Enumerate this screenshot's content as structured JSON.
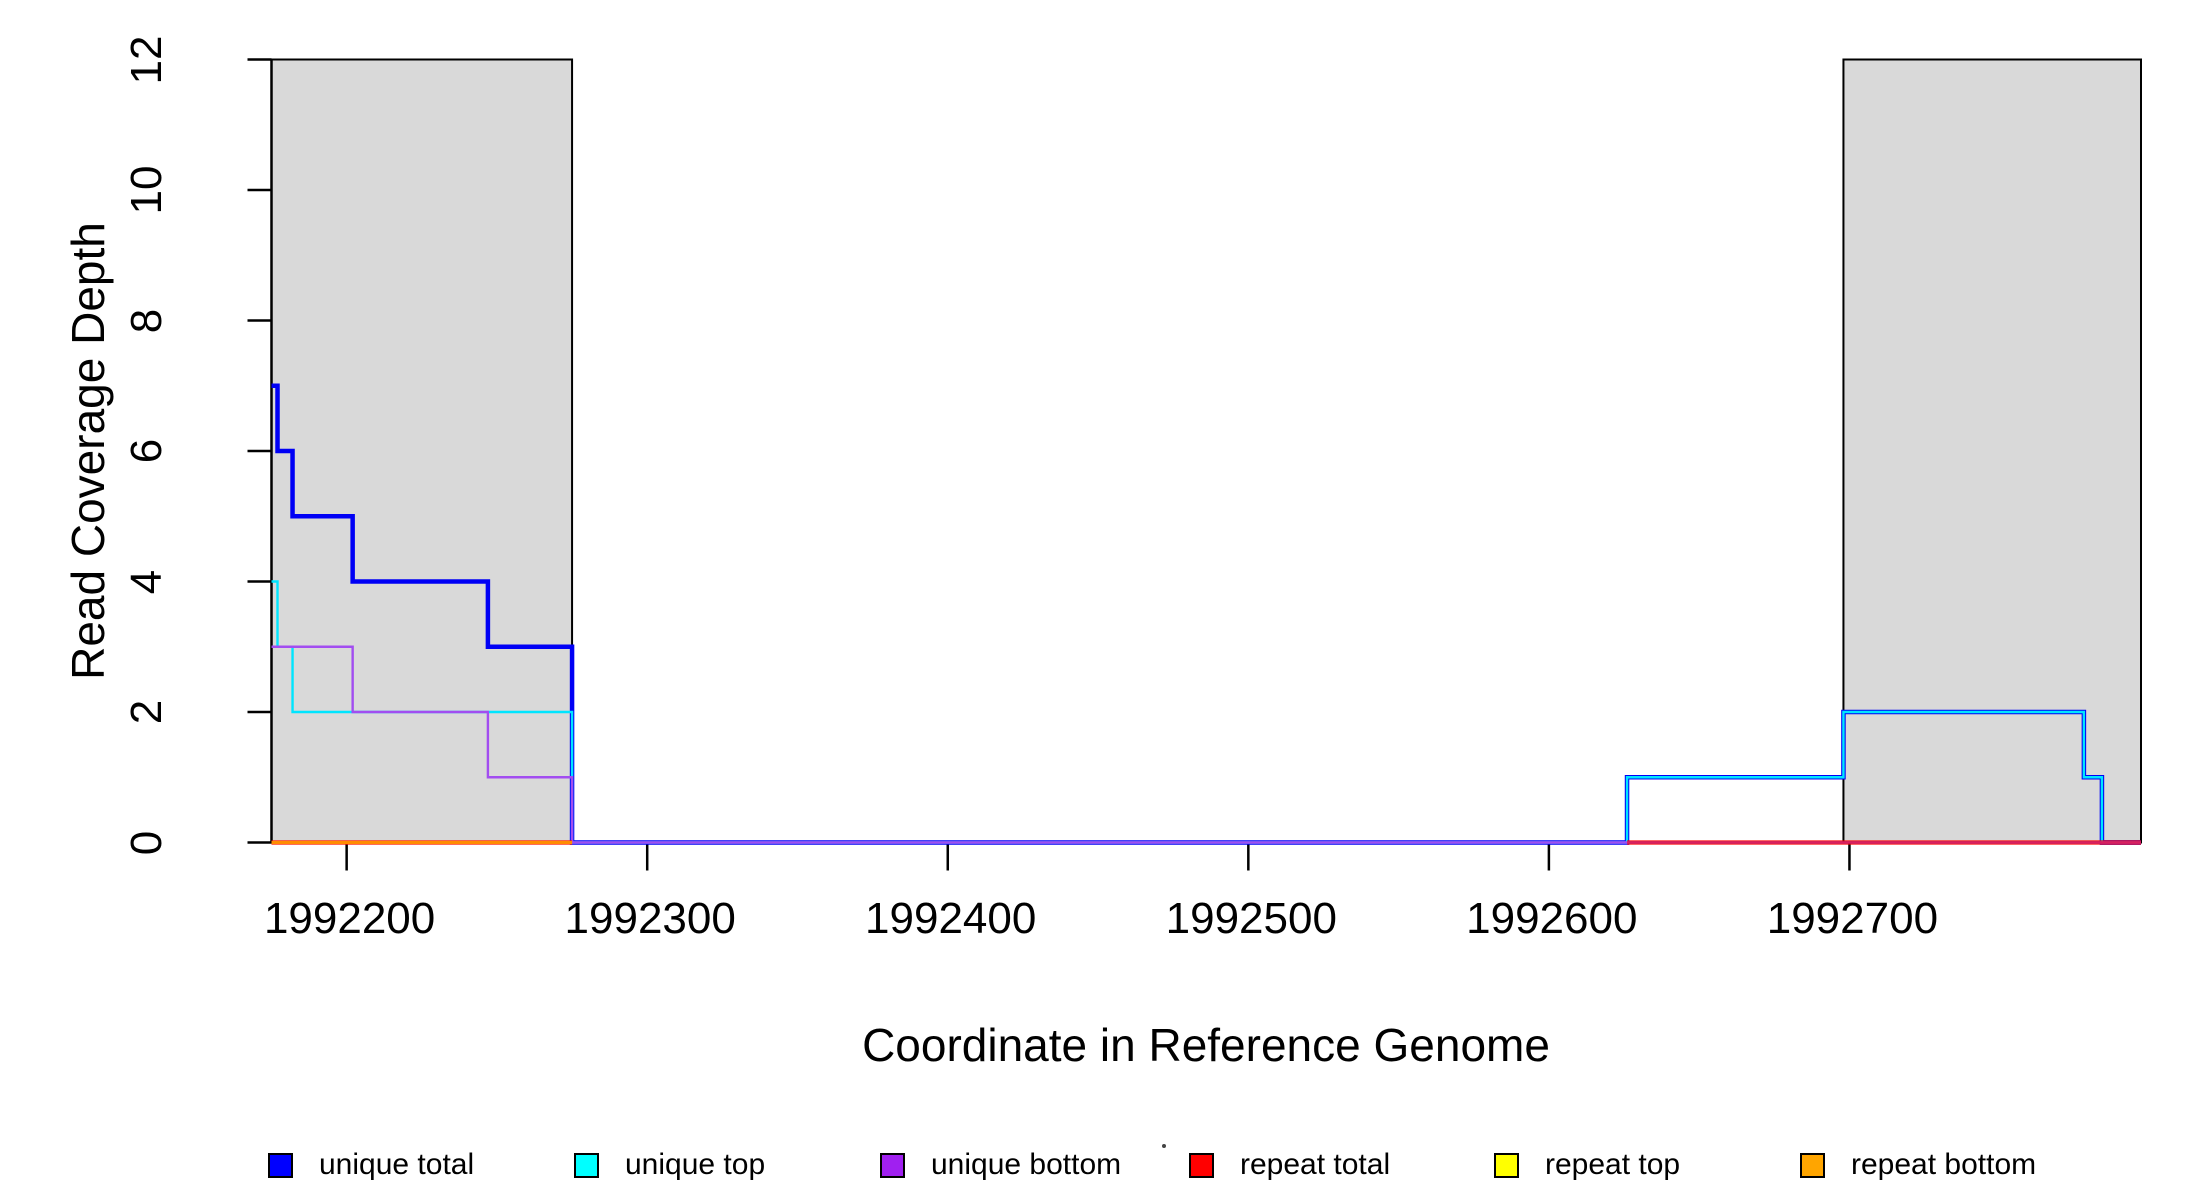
{
  "chart_data": {
    "type": "line",
    "subtype": "step-coverage",
    "title": "",
    "xlabel": "Coordinate in Reference Genome",
    "ylabel": "Read Coverage Depth",
    "xlim": [
      1992175,
      1992797
    ],
    "ylim": [
      0,
      12
    ],
    "grid": false,
    "x_ticks": [
      1992200,
      1992300,
      1992400,
      1992500,
      1992600,
      1992700
    ],
    "x_tick_labels": [
      "1992200",
      "1992300",
      "1992400",
      "1992500",
      "1992600",
      "1992700"
    ],
    "y_ticks": [
      0,
      2,
      4,
      6,
      8,
      10,
      12
    ],
    "y_tick_labels": [
      "0",
      "2",
      "4",
      "6",
      "8",
      "10",
      "12"
    ],
    "repeat_region_shading": {
      "fill": "#D9D9D9",
      "border": "#000000",
      "regions": [
        [
          1992175,
          1992275
        ],
        [
          1992698,
          1992797
        ]
      ]
    },
    "series": [
      {
        "name": "unique total",
        "color": "#0000F5",
        "lwd": 4.5,
        "opacity": 1,
        "runs": [
          {
            "x": [
              1992175,
              1992177,
              1992182,
              1992202,
              1992247,
              1992275,
              1992626,
              1992698,
              1992778,
              1992784
            ],
            "y": [
              7,
              6,
              5,
              4,
              3,
              0,
              1,
              2,
              1,
              0
            ],
            "end": 1992797
          }
        ]
      },
      {
        "name": "unique top",
        "color": "#00E5FF",
        "lwd": 2.4,
        "opacity": 1,
        "runs": [
          {
            "x": [
              1992175,
              1992177,
              1992182,
              1992275,
              1992626,
              1992698,
              1992778,
              1992784
            ],
            "y": [
              4,
              3,
              2,
              0,
              1,
              2,
              1,
              0
            ],
            "end": 1992797
          }
        ]
      },
      {
        "name": "unique bottom",
        "color": "#A24DF0",
        "lwd": 2.4,
        "opacity": 1,
        "runs": [
          {
            "x": [
              1992175,
              1992202,
              1992247,
              1992275
            ],
            "y": [
              3,
              2,
              1,
              0
            ],
            "end": 1992797
          }
        ]
      },
      {
        "name": "repeat total",
        "color": "#FF0000",
        "lwd": 5,
        "opacity": 0.6,
        "runs": [
          {
            "x": [
              1992175
            ],
            "y": [
              0
            ],
            "end": 1992275
          },
          {
            "x": [
              1992626
            ],
            "y": [
              0
            ],
            "end": 1992797
          }
        ]
      },
      {
        "name": "repeat top",
        "color": "#FFFF00",
        "lwd": 2.4,
        "opacity": 1,
        "runs": [
          {
            "x": [
              1992175
            ],
            "y": [
              0
            ],
            "end": 1992275
          }
        ]
      },
      {
        "name": "repeat bottom",
        "color": "#FF8C00",
        "lwd": 3.2,
        "opacity": 1,
        "runs": [
          {
            "x": [
              1992175
            ],
            "y": [
              0
            ],
            "end": 1992275
          }
        ]
      }
    ],
    "legend_position": "bottom"
  },
  "legend": {
    "items": [
      {
        "label": "unique total",
        "color": "#0000FF"
      },
      {
        "label": "unique top",
        "color": "#00FFFF"
      },
      {
        "label": "unique bottom",
        "color": "#A020F0"
      },
      {
        "label": "repeat total",
        "color": "#FF0000"
      },
      {
        "label": "repeat top",
        "color": "#FFFF00"
      },
      {
        "label": "repeat bottom",
        "color": "#FFA500"
      }
    ]
  },
  "axes": {
    "x_title": "Coordinate in Reference Genome",
    "y_title": "Read Coverage Depth"
  }
}
